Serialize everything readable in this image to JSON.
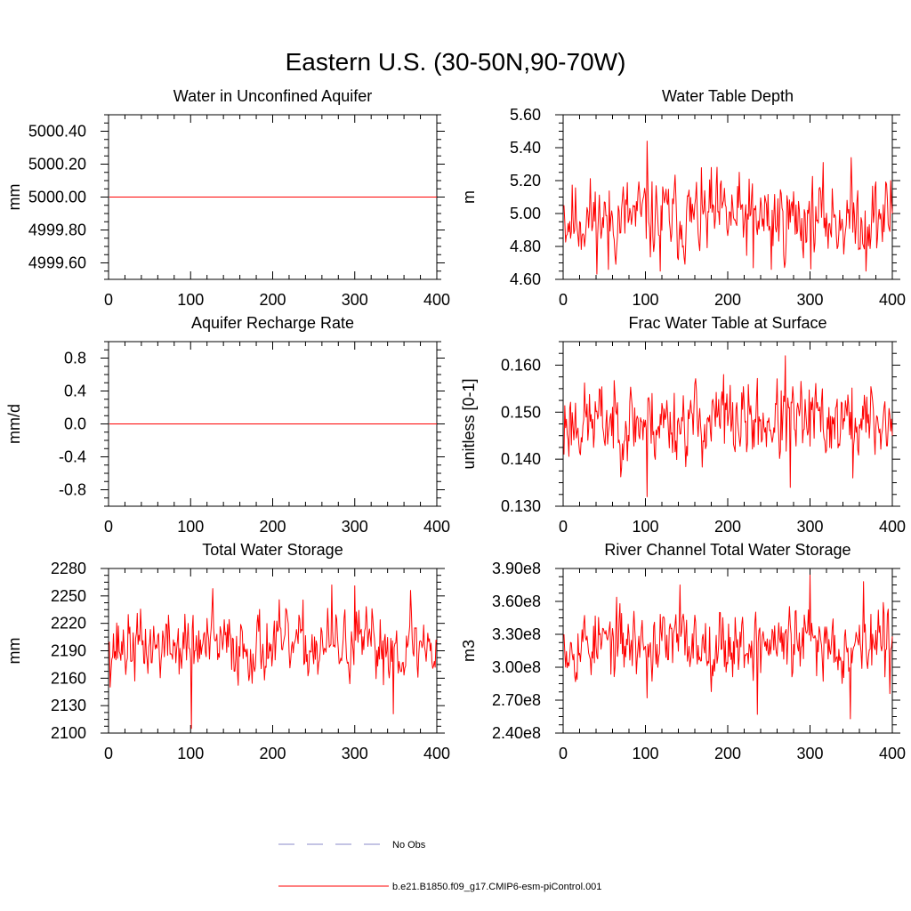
{
  "title": "Eastern U.S. (30-50N,90-70W)",
  "line_color": "#ff0000",
  "obs_color": "#8a8ac8",
  "legend": {
    "obs_label": "No Obs",
    "model_label": "b.e21.B1850.f09_g17.CMIP6-esm-piControl.001"
  },
  "chart_data": [
    {
      "type": "line",
      "title": "Water in Unconfined Aquifer",
      "ylabel": "mm",
      "xlim": [
        0,
        400
      ],
      "ylim": [
        4999.5,
        5000.5
      ],
      "xticks": [
        "0",
        "100",
        "200",
        "300",
        "400"
      ],
      "yticks": [
        4999.6,
        4999.8,
        5000.0,
        5000.2,
        5000.4
      ],
      "ytick_labels": [
        "4999.60",
        "4999.80",
        "5000.00",
        "5000.20",
        "5000.40"
      ],
      "series": [
        {
          "kind": "constant",
          "x": [
            1,
            400
          ],
          "y": [
            5000.0,
            5000.0
          ]
        }
      ]
    },
    {
      "type": "line",
      "title": "Water Table Depth",
      "ylabel": "m",
      "xlim": [
        0,
        400
      ],
      "ylim": [
        4.6,
        5.6
      ],
      "xticks": [
        "0",
        "100",
        "200",
        "300",
        "400"
      ],
      "yticks": [
        4.6,
        4.8,
        5.0,
        5.2,
        5.4,
        5.6
      ],
      "ytick_labels": [
        "4.60",
        "4.80",
        "5.00",
        "5.20",
        "5.40",
        "5.60"
      ],
      "series": [
        {
          "kind": "noisy",
          "n": 400,
          "mean": 4.97,
          "amp": 0.18,
          "seed": 11,
          "anchors": [
            [
              1,
              5.05
            ],
            [
              55,
              4.66
            ],
            [
              102,
              5.44
            ],
            [
              118,
              4.65
            ],
            [
              180,
              5.28
            ],
            [
              231,
              4.67
            ],
            [
              253,
              4.66
            ],
            [
              350,
              5.34
            ],
            [
              368,
              4.65
            ],
            [
              398,
              5.2
            ],
            [
              400,
              5.0
            ]
          ]
        }
      ]
    },
    {
      "type": "line",
      "title": "Aquifer Recharge Rate",
      "ylabel": "mm/d",
      "xlim": [
        0,
        400
      ],
      "ylim": [
        -1.0,
        1.0
      ],
      "xticks": [
        "0",
        "100",
        "200",
        "300",
        "400"
      ],
      "yticks": [
        -0.8,
        -0.4,
        0.0,
        0.4,
        0.8
      ],
      "ytick_labels": [
        "-0.8",
        "-0.4",
        "0.0",
        "0.4",
        "0.8"
      ],
      "series": [
        {
          "kind": "constant",
          "x": [
            1,
            400
          ],
          "y": [
            0.0,
            0.0
          ]
        }
      ]
    },
    {
      "type": "line",
      "title": "Frac Water Table at Surface",
      "ylabel": "unitless [0-1]",
      "xlim": [
        0,
        400
      ],
      "ylim": [
        0.13,
        0.165
      ],
      "xticks": [
        "0",
        "100",
        "200",
        "300",
        "400"
      ],
      "yticks": [
        0.13,
        0.14,
        0.15,
        0.16
      ],
      "ytick_labels": [
        "0.130",
        "0.140",
        "0.150",
        "0.160"
      ],
      "series": [
        {
          "kind": "noisy",
          "n": 400,
          "mean": 0.148,
          "amp": 0.006,
          "seed": 23,
          "anchors": [
            [
              1,
              0.141
            ],
            [
              102,
              0.132
            ],
            [
              195,
              0.158
            ],
            [
              270,
              0.162
            ],
            [
              276,
              0.134
            ],
            [
              352,
              0.136
            ],
            [
              398,
              0.146
            ],
            [
              400,
              0.145
            ]
          ]
        }
      ]
    },
    {
      "type": "line",
      "title": "Total Water Storage",
      "ylabel": "mm",
      "xlim": [
        0,
        400
      ],
      "ylim": [
        2100,
        2280
      ],
      "xticks": [
        "0",
        "100",
        "200",
        "300",
        "400"
      ],
      "yticks": [
        2100,
        2130,
        2160,
        2190,
        2220,
        2250,
        2280
      ],
      "ytick_labels": [
        "2100",
        "2130",
        "2160",
        "2190",
        "2220",
        "2250",
        "2280"
      ],
      "series": [
        {
          "kind": "noisy",
          "n": 400,
          "mean": 2195,
          "amp": 27,
          "seed": 37,
          "anchors": [
            [
              1,
              2200
            ],
            [
              101,
              2105
            ],
            [
              127,
              2258
            ],
            [
              272,
              2262
            ],
            [
              300,
              2261
            ],
            [
              347,
              2121
            ],
            [
              368,
              2256
            ],
            [
              400,
              2200
            ]
          ]
        }
      ]
    },
    {
      "type": "line",
      "title": "River Channel Total Water Storage",
      "ylabel": "m3",
      "xlim": [
        0,
        400
      ],
      "ylim": [
        240000000.0,
        390000000.0
      ],
      "xticks": [
        "0",
        "100",
        "200",
        "300",
        "400"
      ],
      "yticks": [
        240000000.0,
        270000000.0,
        300000000.0,
        330000000.0,
        360000000.0,
        390000000.0
      ],
      "ytick_labels": [
        "2.40e8",
        "2.70e8",
        "3.00e8",
        "3.30e8",
        "3.60e8",
        "3.90e8"
      ],
      "series": [
        {
          "kind": "noisy",
          "n": 400,
          "mean": 322000000.0,
          "amp": 23000000.0,
          "seed": 53,
          "anchors": [
            [
              1,
              330000000.0
            ],
            [
              102,
              272000000.0
            ],
            [
              142,
              375000000.0
            ],
            [
              236,
              257000000.0
            ],
            [
              300,
              384000000.0
            ],
            [
              349,
              253000000.0
            ],
            [
              365,
              378000000.0
            ],
            [
              397,
              276000000.0
            ],
            [
              400,
              328000000.0
            ]
          ]
        }
      ]
    }
  ]
}
